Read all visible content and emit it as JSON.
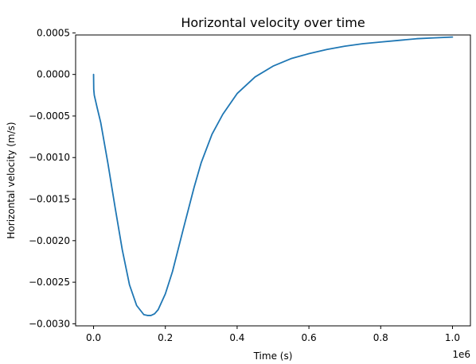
{
  "chart_data": {
    "type": "line",
    "title": "Horizontal velocity over time",
    "xlabel": "Time (s)",
    "ylabel": "Horizontal velocity (m/s)",
    "x_offset_label": "1e6",
    "xlim": [
      -0.05,
      1.05
    ],
    "ylim": [
      -0.003025,
      0.000475
    ],
    "x_ticks": [
      0.0,
      0.2,
      0.4,
      0.6,
      0.8,
      1.0
    ],
    "x_tick_labels": [
      "0.0",
      "0.2",
      "0.4",
      "0.6",
      "0.8",
      "1.0"
    ],
    "y_ticks": [
      0.0005,
      0.0,
      -0.0005,
      -0.001,
      -0.0015,
      -0.002,
      -0.0025,
      -0.003
    ],
    "y_tick_labels": [
      "0.0005",
      "0.0000",
      "−0.0005",
      "−0.0010",
      "−0.0015",
      "−0.0020",
      "−0.0025",
      "−0.0030"
    ],
    "grid": false,
    "series": [
      {
        "color": "#1f77b4",
        "x": [
          0.0,
          0.0005,
          0.002,
          0.01,
          0.02,
          0.04,
          0.06,
          0.08,
          0.1,
          0.12,
          0.14,
          0.15,
          0.16,
          0.17,
          0.18,
          0.2,
          0.22,
          0.25,
          0.28,
          0.3,
          0.33,
          0.36,
          0.4,
          0.45,
          0.5,
          0.55,
          0.6,
          0.65,
          0.7,
          0.75,
          0.8,
          0.85,
          0.9,
          0.95,
          1.0
        ],
        "y": [
          0.0,
          -0.00018,
          -0.00025,
          -0.0004,
          -0.00058,
          -0.00107,
          -0.0016,
          -0.00211,
          -0.00253,
          -0.00278,
          -0.00289,
          -0.0029,
          -0.0029,
          -0.00288,
          -0.00283,
          -0.00264,
          -0.00237,
          -0.00186,
          -0.00136,
          -0.00106,
          -0.00072,
          -0.00048,
          -0.00023,
          -3e-05,
          0.0001,
          0.00019,
          0.00025,
          0.0003,
          0.00034,
          0.00037,
          0.00039,
          0.00041,
          0.00043,
          0.00044,
          0.00045
        ]
      }
    ]
  }
}
